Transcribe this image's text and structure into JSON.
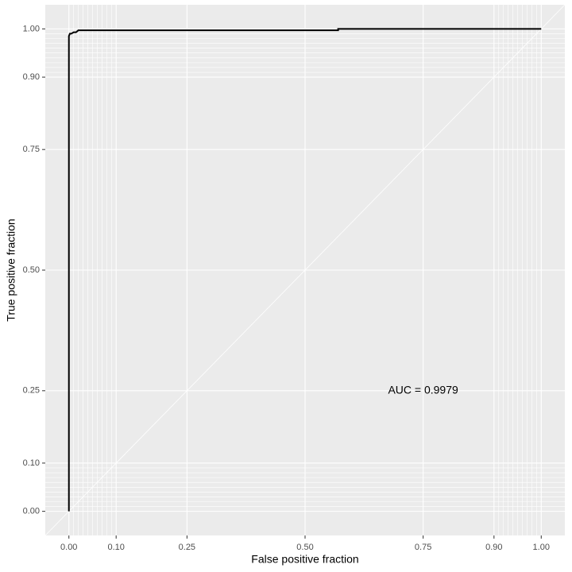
{
  "chart_data": {
    "type": "line",
    "x_label": "False positive fraction",
    "y_label": "True positive fraction",
    "annotation": {
      "text": "AUC = 0.9979",
      "x": 0.75,
      "y": 0.25
    },
    "series": [
      {
        "color": "#000000",
        "x": [
          0,
          0,
          0.002,
          0.005,
          0.01,
          0.015,
          0.02,
          0.57,
          0.57,
          1
        ],
        "values": [
          0,
          0.985,
          0.99,
          0.99,
          0.993,
          0.993,
          0.997,
          0.997,
          1,
          1
        ]
      }
    ],
    "xlim": [
      -0.05,
      1.05
    ],
    "ylim": [
      -0.05,
      1.05
    ],
    "xticks": [
      {
        "value": 0,
        "label": "0.00"
      },
      {
        "value": 0.1,
        "label": "0.10"
      },
      {
        "value": 0.25,
        "label": "0.25"
      },
      {
        "value": 0.5,
        "label": "0.50"
      },
      {
        "value": 0.75,
        "label": "0.75"
      },
      {
        "value": 0.9,
        "label": "0.90"
      },
      {
        "value": 1,
        "label": "1.00"
      }
    ],
    "yticks": [
      {
        "value": 0,
        "label": "0.00"
      },
      {
        "value": 0.1,
        "label": "0.10"
      },
      {
        "value": 0.25,
        "label": "0.25"
      },
      {
        "value": 0.5,
        "label": "0.50"
      },
      {
        "value": 0.75,
        "label": "0.75"
      },
      {
        "value": 0.9,
        "label": "0.90"
      },
      {
        "value": 1,
        "label": "1.00"
      }
    ],
    "minor_grid": [
      0.01,
      0.02,
      0.03,
      0.04,
      0.05,
      0.06,
      0.07,
      0.08,
      0.09,
      0.91,
      0.92,
      0.93,
      0.94,
      0.95,
      0.96,
      0.97,
      0.98,
      0.99
    ],
    "grid": true,
    "panel_color": "#ebebeb"
  }
}
